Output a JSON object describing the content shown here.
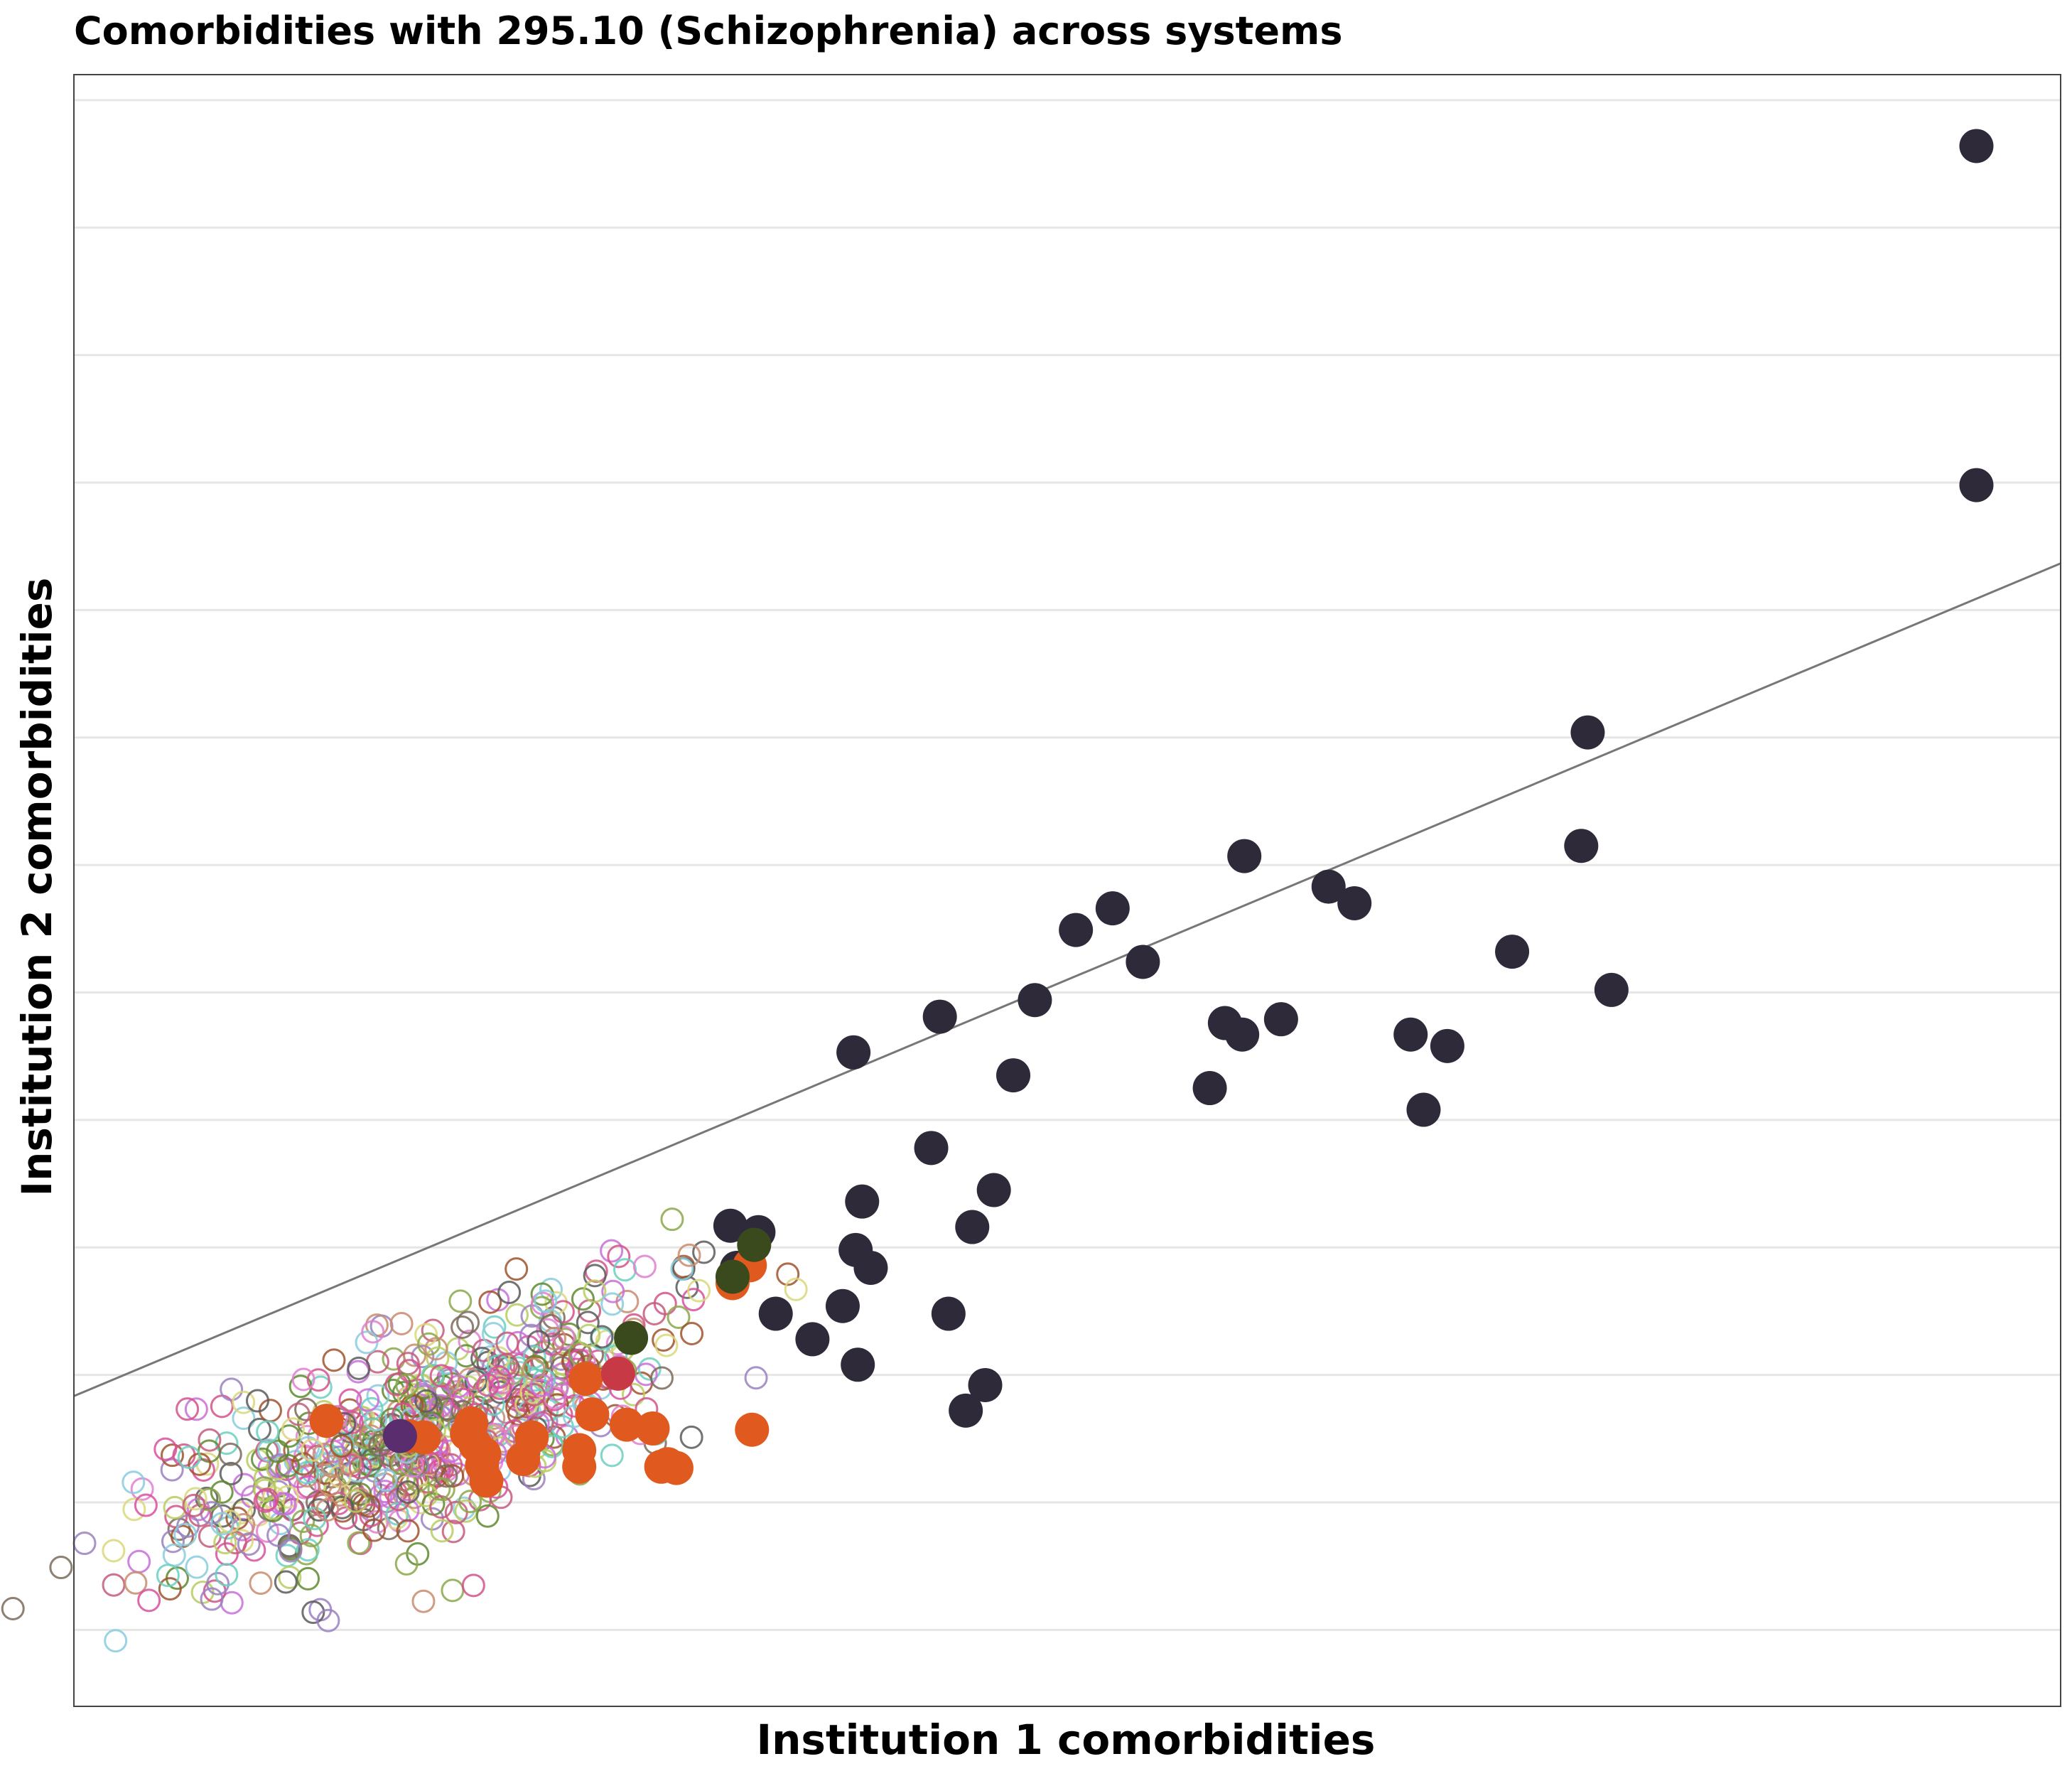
{
  "chart_data": {
    "type": "scatter",
    "title": "Comorbidities with 295.10 (Schizophrenia) across systems",
    "xlabel": "Institution 1 comorbidities",
    "ylabel": "Institution 2 comorbidities",
    "xlim": [
      -4.6,
      4.6
    ],
    "ylim": [
      -5.6,
      7.2
    ],
    "grid": "horizontal",
    "legend": "none",
    "reference_line": {
      "slope": 0.71,
      "intercept": 0.1
    },
    "colors": {
      "dark": "#2e2a3a",
      "orange": "#e05a20",
      "olive": "#3a4a1c",
      "red": "#c73a45",
      "purple": "#5a2d6e",
      "reference_line": "#777777",
      "grid": "#e6e6e6",
      "axes": "#444444"
    },
    "highlighted_series": [
      {
        "color": "#2e2a3a",
        "points": [
          [
            4.21,
            6.64
          ],
          [
            4.21,
            3.98
          ],
          [
            2.41,
            2.04
          ],
          [
            2.38,
            1.15
          ],
          [
            2.52,
            0.02
          ],
          [
            2.06,
            0.32
          ],
          [
            1.65,
            -0.92
          ],
          [
            0.82,
            1.07
          ],
          [
            1.21,
            0.83
          ],
          [
            1.33,
            0.7
          ],
          [
            0.21,
            0.66
          ],
          [
            0.35,
            0.24
          ],
          [
            0.73,
            -0.24
          ],
          [
            0.81,
            -0.33
          ],
          [
            0.04,
            0.49
          ],
          [
            0.99,
            -0.21
          ],
          [
            1.59,
            -0.33
          ],
          [
            1.76,
            -0.42
          ],
          [
            -0.15,
            -0.06
          ],
          [
            -0.59,
            -0.19
          ],
          [
            -0.99,
            -0.47
          ],
          [
            -0.25,
            -0.65
          ],
          [
            0.66,
            -0.75
          ],
          [
            -0.63,
            -1.22
          ],
          [
            -0.34,
            -1.55
          ],
          [
            -0.44,
            -1.84
          ],
          [
            -1.43,
            -1.88
          ],
          [
            -1.56,
            -1.83
          ],
          [
            -1.53,
            -2.16
          ],
          [
            -1.18,
            -2.72
          ],
          [
            -1.04,
            -2.46
          ],
          [
            -0.98,
            -2.02
          ],
          [
            -0.95,
            -1.64
          ],
          [
            -0.91,
            -2.16
          ],
          [
            -1.35,
            -2.52
          ],
          [
            -0.55,
            -2.52
          ],
          [
            -0.47,
            -3.28
          ],
          [
            -0.38,
            -3.08
          ],
          [
            -0.97,
            -2.92
          ]
        ]
      },
      {
        "color": "#e05a20",
        "points": [
          [
            -3.43,
            -3.36
          ],
          [
            -3.05,
            -3.48
          ],
          [
            -2.98,
            -3.49
          ],
          [
            -2.78,
            -3.46
          ],
          [
            -2.76,
            -3.38
          ],
          [
            -2.74,
            -3.55
          ],
          [
            -2.7,
            -3.62
          ],
          [
            -2.71,
            -3.71
          ],
          [
            -2.69,
            -3.83
          ],
          [
            -2.48,
            -3.49
          ],
          [
            -2.52,
            -3.66
          ],
          [
            -2.26,
            -3.72
          ],
          [
            -2.26,
            -3.59
          ],
          [
            -2.23,
            -3.03
          ],
          [
            -2.2,
            -3.31
          ],
          [
            -2.04,
            -3.39
          ],
          [
            -1.92,
            -3.42
          ],
          [
            -1.88,
            -3.72
          ],
          [
            -1.81,
            -3.73
          ],
          [
            -1.85,
            -3.7
          ],
          [
            -1.46,
            -3.43
          ],
          [
            -1.47,
            -2.14
          ],
          [
            -1.55,
            -2.28
          ]
        ]
      },
      {
        "color": "#3a4a1c",
        "points": [
          [
            -1.45,
            -1.98
          ],
          [
            -1.55,
            -2.23
          ],
          [
            -2.02,
            -2.71
          ]
        ]
      },
      {
        "color": "#c73a45",
        "points": [
          [
            -2.08,
            -2.99
          ]
        ]
      },
      {
        "color": "#5a2d6e",
        "points": [
          [
            -3.09,
            -3.48
          ]
        ]
      }
    ],
    "background_points_note": ""
  }
}
